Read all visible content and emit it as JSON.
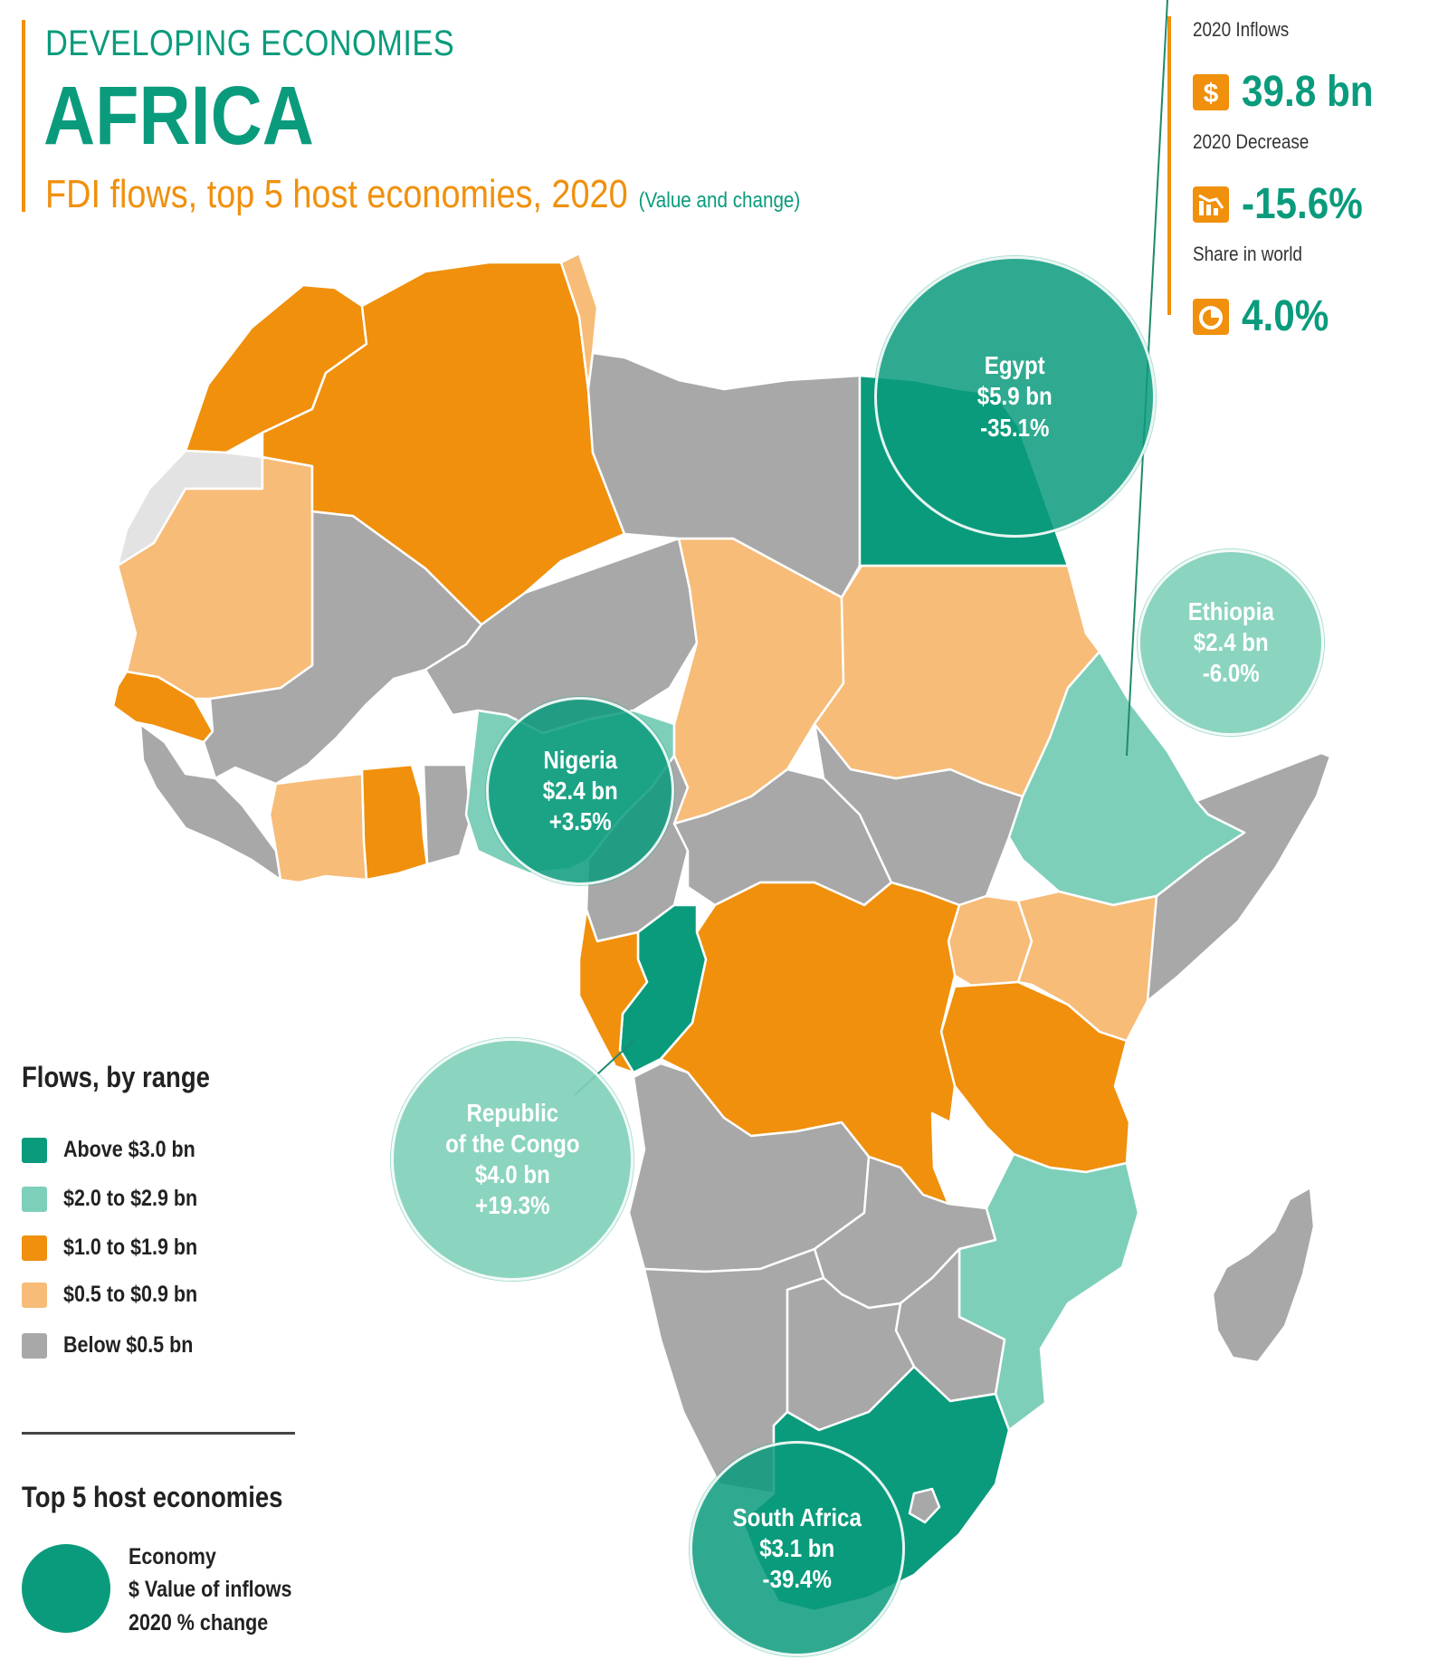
{
  "header": {
    "supertitle": "DEVELOPING ECONOMIES",
    "title": "AFRICA",
    "subtitle": "FDI flows, top 5 host economies, 2020",
    "subtitle_note": "(Value and change)"
  },
  "stats": [
    {
      "label": "2020 Inflows",
      "value": "39.8 bn",
      "icon": "dollar-icon"
    },
    {
      "label": "2020 Decrease",
      "value": "-15.6%",
      "icon": "decrease-chart-icon"
    },
    {
      "label": "Share in world",
      "value": "4.0%",
      "icon": "pie-icon"
    }
  ],
  "colors": {
    "above_3": "#0a9b7c",
    "range_2_29": "#7ecfb9",
    "range_1_19": "#f0900d",
    "range_05_09": "#f7bc78",
    "below_05": "#a8a8a8",
    "no_data": "#e3e3e3"
  },
  "countries": {
    "egypt": "above_3",
    "south_africa": "above_3",
    "congo_republic": "above_3",
    "nigeria": "range_2_29",
    "ethiopia": "range_2_29",
    "mozambique": "range_2_29",
    "morocco": "range_1_19",
    "algeria": "range_1_19",
    "senegal": "range_1_19",
    "ghana": "range_1_19",
    "gabon": "range_1_19",
    "dr_congo": "range_1_19",
    "tanzania": "range_1_19",
    "tunisia": "range_05_09",
    "mauritania": "range_05_09",
    "cote_divoire": "range_05_09",
    "chad": "range_05_09",
    "sudan": "range_05_09",
    "uganda": "range_05_09",
    "kenya": "range_05_09",
    "libya": "below_05",
    "mali": "below_05",
    "niger": "below_05",
    "west_africa_rest": "below_05",
    "central_african_republic": "below_05",
    "south_sudan": "below_05",
    "somalia": "below_05",
    "angola": "below_05",
    "zambia": "below_05",
    "namibia": "below_05",
    "botswana": "below_05",
    "zimbabwe": "below_05",
    "madagascar": "below_05",
    "western_sahara": "no_data"
  },
  "bubbles": {
    "egypt": {
      "name": "Egypt",
      "value": "$5.9 bn",
      "change": "-35.1%"
    },
    "ethiopia": {
      "name": "Ethiopia",
      "value": "$2.4 bn",
      "change": "-6.0%"
    },
    "nigeria": {
      "name": "Nigeria",
      "value": "$2.4 bn",
      "change": "+3.5%"
    },
    "congo": {
      "name_line1": "Republic",
      "name_line2": "of the Congo",
      "value": "$4.0 bn",
      "change": "+19.3%"
    },
    "south_africa": {
      "name": "South Africa",
      "value": "$3.1 bn",
      "change": "-39.4%"
    }
  },
  "legend": {
    "title": "Flows, by range",
    "items": [
      {
        "label": "Above $3.0 bn",
        "color": "#0a9b7c"
      },
      {
        "label": "$2.0 to $2.9 bn",
        "color": "#7ecfb9"
      },
      {
        "label": "$1.0 to $1.9 bn",
        "color": "#f0900d"
      },
      {
        "label": "$0.5 to $0.9 bn",
        "color": "#f7bc78"
      },
      {
        "label": "Below $0.5 bn",
        "color": "#a8a8a8"
      }
    ]
  },
  "key": {
    "title": "Top 5 host economies",
    "line1": "Economy",
    "line2": "$ Value of inflows",
    "line3": "2020 % change"
  }
}
